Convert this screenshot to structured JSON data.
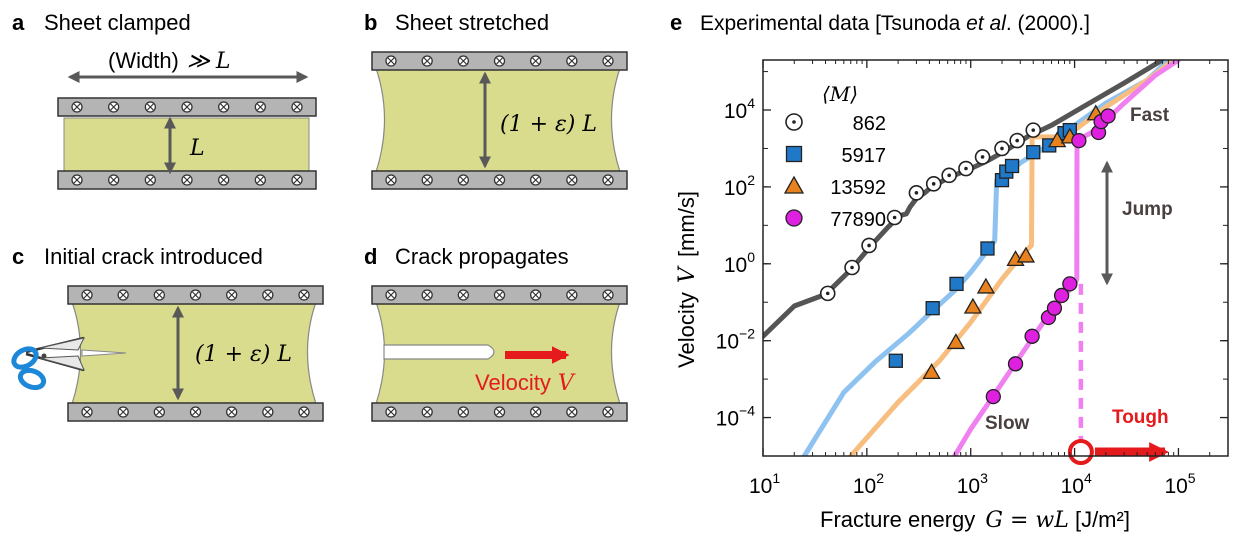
{
  "panels": {
    "a": {
      "letter": "a",
      "title": "Sheet clamped",
      "width_label": "(Width)",
      "much_greater": "≫",
      "L_label": "L",
      "height_label": "L"
    },
    "b": {
      "letter": "b",
      "title": "Sheet stretched",
      "label": "(1 + ε) L"
    },
    "c": {
      "letter": "c",
      "title": "Initial crack introduced",
      "label": "(1 + ε) L"
    },
    "d": {
      "letter": "d",
      "title": "Crack propagates",
      "velocity_text": "Velocity",
      "velocity_symbol": "V"
    },
    "e": {
      "letter": "e",
      "title_prefix": "Experimental data [Tsunoda ",
      "title_italic": "et al",
      "title_suffix": ". (2000).]"
    }
  },
  "colors": {
    "sheet": "#d8dc8c",
    "clamp": "#b4b4b4",
    "arrow": "#595959",
    "red": "#e41a1c",
    "s862": "#555555",
    "s5917": "#1f78c8",
    "s13592": "#e8821e",
    "s77890": "#e020e0",
    "s5917_line": "#8ec2f0",
    "s13592_line": "#f8be80",
    "s77890_line": "#f080f0"
  },
  "chart_data": {
    "type": "scatter",
    "xscale": "log",
    "yscale": "log",
    "xlim": [
      10,
      300000
    ],
    "ylim": [
      1e-05,
      200000
    ],
    "xlabel_prefix": "Fracture energy ",
    "xlabel_math": "G = wL",
    "xlabel_unit": " [J/m²]",
    "ylabel_prefix": "Velocity ",
    "ylabel_math": "V",
    "ylabel_unit": " [mm/s]",
    "x_ticks": [
      {
        "v": 10,
        "base": "10",
        "exp": "1"
      },
      {
        "v": 100,
        "base": "10",
        "exp": "2"
      },
      {
        "v": 1000,
        "base": "10",
        "exp": "3"
      },
      {
        "v": 10000,
        "base": "10",
        "exp": "4"
      },
      {
        "v": 100000,
        "base": "10",
        "exp": "5"
      }
    ],
    "y_ticks": [
      {
        "v": 0.0001,
        "base": "10",
        "exp": "−4"
      },
      {
        "v": 0.01,
        "base": "10",
        "exp": "−2"
      },
      {
        "v": 1,
        "base": "10",
        "exp": "0"
      },
      {
        "v": 100,
        "base": "10",
        "exp": "2"
      },
      {
        "v": 10000,
        "base": "10",
        "exp": "4"
      }
    ],
    "legend_title": "⟨M⟩",
    "legend_position": "top-left",
    "annotations": {
      "fast": "Fast",
      "jump": "Jump",
      "slow": "Slow",
      "tough": "Tough"
    },
    "tough_x": 11500,
    "series": [
      {
        "name": "862",
        "marker": "dot-circle",
        "color_key": "s862",
        "line_key": "s862",
        "points": [
          [
            42,
            0.17
          ],
          [
            72,
            0.8
          ],
          [
            105,
            3
          ],
          [
            185,
            16
          ],
          [
            300,
            70
          ],
          [
            440,
            120
          ],
          [
            620,
            200
          ],
          [
            900,
            300
          ],
          [
            1300,
            600
          ],
          [
            2000,
            1000
          ],
          [
            2800,
            1600
          ],
          [
            4000,
            3000
          ]
        ],
        "curve": [
          [
            10,
            0.013
          ],
          [
            20,
            0.08
          ],
          [
            40,
            0.16
          ],
          [
            70,
            0.7
          ],
          [
            110,
            3
          ],
          [
            160,
            9
          ],
          [
            210,
            18
          ],
          [
            240,
            20
          ],
          [
            260,
            30
          ],
          [
            300,
            50
          ],
          [
            330,
            60
          ],
          [
            360,
            70
          ],
          [
            400,
            90
          ],
          [
            600,
            170
          ],
          [
            1000,
            300
          ],
          [
            1500,
            500
          ],
          [
            2200,
            900
          ],
          [
            3500,
            2000
          ],
          [
            6000,
            4000
          ],
          [
            12000,
            12000
          ],
          [
            30000,
            50000
          ],
          [
            70000,
            200000
          ]
        ]
      },
      {
        "name": "5917",
        "marker": "square",
        "color_key": "s5917",
        "line_key": "s5917_line",
        "points": [
          [
            190,
            0.003
          ],
          [
            430,
            0.07
          ],
          [
            730,
            0.3
          ],
          [
            1450,
            2.5
          ],
          [
            2000,
            150
          ],
          [
            2200,
            250
          ],
          [
            2500,
            350
          ],
          [
            4000,
            800
          ],
          [
            5700,
            1200
          ],
          [
            8000,
            2500
          ],
          [
            9000,
            3000
          ]
        ],
        "curve": [
          [
            25,
            1e-05
          ],
          [
            60,
            0.00045
          ],
          [
            120,
            0.0028
          ],
          [
            250,
            0.015
          ],
          [
            400,
            0.05
          ],
          [
            700,
            0.2
          ],
          [
            1000,
            0.6
          ],
          [
            1500,
            2.5
          ],
          [
            1700,
            4
          ],
          [
            1780,
            150
          ],
          [
            2000,
            170
          ],
          [
            3000,
            420
          ],
          [
            5000,
            1000
          ],
          [
            8000,
            2000
          ],
          [
            10000,
            4000
          ],
          [
            20000,
            15000
          ],
          [
            50000,
            60000
          ],
          [
            80000,
            200000
          ]
        ]
      },
      {
        "name": "13592",
        "marker": "triangle",
        "color_key": "s13592",
        "line_key": "s13592_line",
        "points": [
          [
            420,
            0.0015
          ],
          [
            720,
            0.009
          ],
          [
            1050,
            0.075
          ],
          [
            1400,
            0.25
          ],
          [
            2700,
            1.3
          ],
          [
            3400,
            1.6
          ],
          [
            6800,
            1600
          ],
          [
            9000,
            2000
          ],
          [
            16000,
            8000
          ]
        ],
        "curve": [
          [
            70,
            1e-05
          ],
          [
            200,
            0.00025
          ],
          [
            500,
            0.003
          ],
          [
            1000,
            0.03
          ],
          [
            2000,
            0.4
          ],
          [
            3000,
            1.5
          ],
          [
            3850,
            3
          ],
          [
            3900,
            2000
          ],
          [
            7000,
            2000
          ],
          [
            10000,
            3000
          ],
          [
            20000,
            12000
          ],
          [
            50000,
            60000
          ],
          [
            90000,
            200000
          ]
        ]
      },
      {
        "name": "77890",
        "marker": "circle",
        "color_key": "s77890",
        "line_key": "s77890_line",
        "points": [
          [
            1650,
            0.00035
          ],
          [
            2700,
            0.0025
          ],
          [
            3900,
            0.013
          ],
          [
            5600,
            0.04
          ],
          [
            6400,
            0.07
          ],
          [
            7500,
            0.15
          ],
          [
            9000,
            0.3
          ],
          [
            11000,
            1600
          ],
          [
            17000,
            2600
          ],
          [
            18000,
            5000
          ],
          [
            21000,
            7000
          ]
        ],
        "curve": [
          [
            700,
            1e-05
          ],
          [
            1000,
            5e-05
          ],
          [
            1500,
            0.00025
          ],
          [
            3000,
            0.004
          ],
          [
            5000,
            0.03
          ],
          [
            8000,
            0.15
          ],
          [
            10000,
            0.3
          ],
          [
            10500,
            0.4
          ],
          [
            10550,
            1600
          ],
          [
            16000,
            3000
          ],
          [
            30000,
            15000
          ],
          [
            60000,
            80000
          ],
          [
            100000,
            200000
          ]
        ]
      }
    ]
  }
}
